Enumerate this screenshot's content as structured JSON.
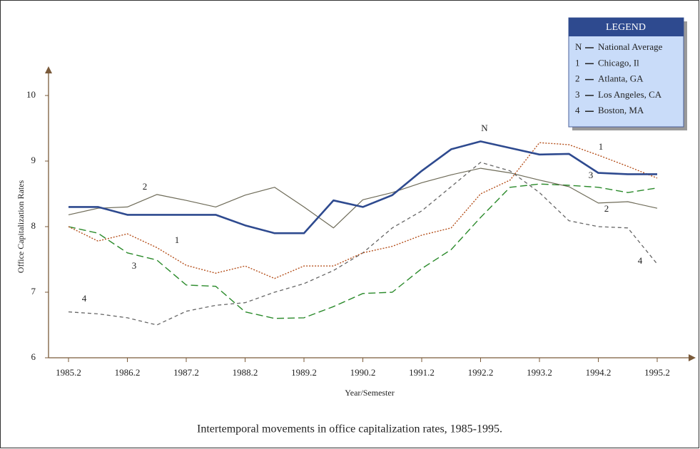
{
  "chart_data": {
    "type": "line",
    "caption": "Intertemporal movements in office capitalization rates, 1985-1995.",
    "x_label": "Year/Semester",
    "y_label": "Office Capitalization Rates",
    "legend_title": "LEGEND",
    "categories": [
      "1985.2",
      null,
      "1986.2",
      null,
      "1987.2",
      null,
      "1988.2",
      null,
      "1989.2",
      null,
      "1990.2",
      null,
      "1991.2",
      null,
      "1992.2",
      null,
      "1993.2",
      null,
      "1994.2",
      null,
      "1995.2"
    ],
    "ylim": [
      6,
      10.4
    ],
    "yticks": [
      6,
      7,
      8,
      9,
      10
    ],
    "series": [
      {
        "key": "N",
        "name": "National Average",
        "color": "#2e4a8f",
        "values": [
          8.3,
          8.3,
          8.18,
          8.18,
          8.18,
          8.18,
          8.02,
          7.9,
          7.9,
          8.4,
          8.3,
          8.48,
          8.85,
          9.18,
          9.3,
          9.2,
          9.1,
          9.11,
          8.82,
          8.8,
          8.8
        ]
      },
      {
        "key": "1",
        "name": "Chicago, Il",
        "color": "#b5501c",
        "values": [
          8.0,
          7.78,
          7.89,
          7.68,
          7.41,
          7.29,
          7.4,
          7.21,
          7.4,
          7.4,
          7.6,
          7.7,
          7.87,
          7.98,
          8.5,
          8.71,
          9.28,
          9.25,
          9.09,
          8.92,
          8.74
        ]
      },
      {
        "key": "2",
        "name": "Atlanta, GA",
        "color": "#6e6b58",
        "values": [
          8.18,
          8.28,
          8.3,
          8.49,
          8.4,
          8.3,
          8.48,
          8.6,
          8.3,
          7.98,
          8.41,
          8.52,
          8.67,
          8.79,
          8.89,
          8.82,
          8.71,
          8.61,
          8.36,
          8.38,
          8.28
        ]
      },
      {
        "key": "3",
        "name": "Los Angeles, CA",
        "color": "#2a8a2a",
        "values": [
          8.0,
          7.9,
          7.6,
          7.49,
          7.11,
          7.09,
          6.7,
          6.6,
          6.61,
          6.78,
          6.98,
          7.0,
          7.36,
          7.65,
          8.14,
          8.6,
          8.65,
          8.63,
          8.6,
          8.52,
          8.59
        ]
      },
      {
        "key": "4",
        "name": "Boston, MA",
        "color": "#666666",
        "values": [
          6.7,
          6.67,
          6.61,
          6.5,
          6.71,
          6.8,
          6.84,
          7.0,
          7.13,
          7.33,
          7.6,
          7.98,
          8.24,
          8.61,
          8.98,
          8.85,
          8.52,
          8.09,
          8.0,
          7.98,
          7.43
        ]
      }
    ]
  }
}
